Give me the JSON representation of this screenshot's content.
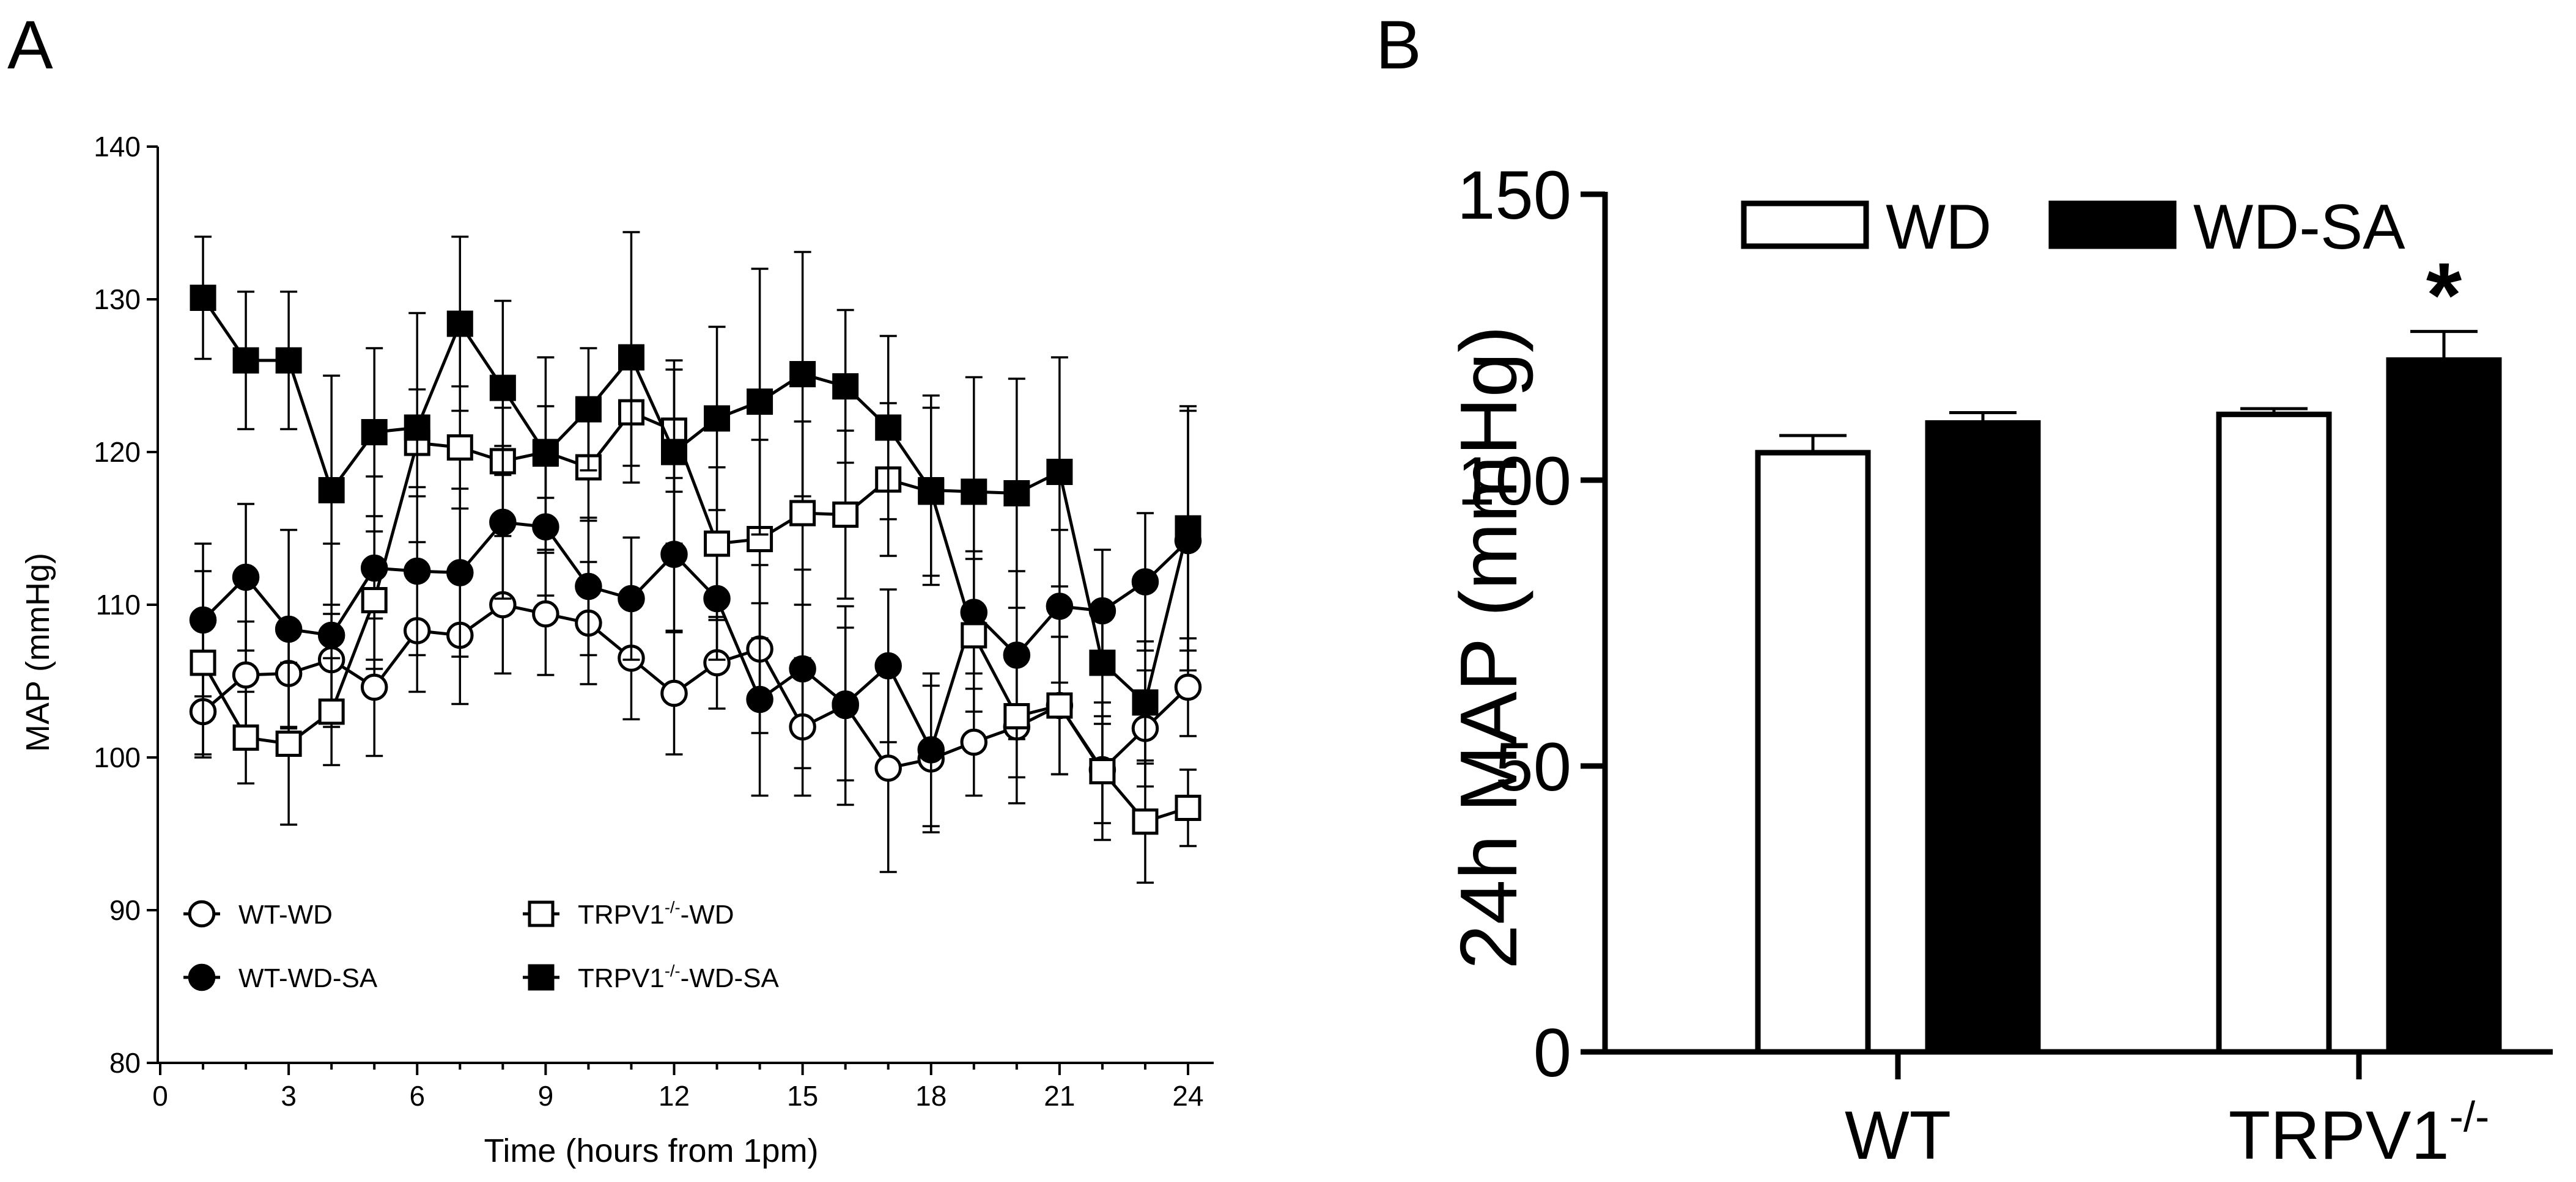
{
  "chart_data": [
    {
      "panel": "A",
      "type": "line",
      "xlabel": "Time (hours from 1pm)",
      "ylabel": "MAP (mmHg)",
      "xlim": [
        0,
        24.5
      ],
      "ylim": [
        80,
        140
      ],
      "xticks": [
        0,
        3,
        6,
        9,
        12,
        15,
        18,
        21,
        24
      ],
      "yticks": [
        80,
        90,
        100,
        110,
        120,
        130,
        140
      ],
      "x": [
        1,
        2,
        3,
        4,
        5,
        6,
        7,
        8,
        9,
        10,
        11,
        12,
        13,
        14,
        15,
        16,
        17,
        18,
        19,
        20,
        21,
        22,
        23,
        24
      ],
      "series": [
        {
          "name": "WT-WD",
          "legend_base": "WT-WD",
          "legend_sup": "",
          "legend_tail": "",
          "marker": "circle",
          "fill": "open",
          "values": [
            103.0,
            105.4,
            105.5,
            106.4,
            104.6,
            108.3,
            108.0,
            110.0,
            109.4,
            108.8,
            106.5,
            104.2,
            106.2,
            107.1,
            102.0,
            103.4,
            99.3,
            99.9,
            101.0,
            102.0,
            103.4,
            99.2,
            101.9,
            104.6
          ],
          "errors": [
            3.0,
            3.5,
            3.5,
            3.0,
            4.5,
            4.0,
            4.5,
            4.5,
            4.0,
            4.0,
            4.0,
            4.0,
            3.0,
            5.5,
            4.5,
            6.5,
            6.8,
            4.8,
            3.5,
            5.0,
            4.5,
            3.5,
            3.8,
            3.2
          ]
        },
        {
          "name": "WT-WD-SA",
          "legend_base": "WT-WD-SA",
          "legend_sup": "",
          "legend_tail": "",
          "marker": "circle",
          "fill": "filled",
          "values": [
            109.0,
            111.8,
            108.4,
            108.0,
            112.4,
            112.2,
            112.1,
            115.4,
            115.1,
            111.2,
            110.4,
            113.3,
            110.4,
            103.8,
            105.8,
            103.5,
            106.0,
            100.5,
            109.5,
            106.7,
            109.9,
            109.6,
            111.5,
            114.2
          ],
          "errors": [
            5.0,
            4.8,
            6.5,
            6.0,
            6.0,
            5.5,
            5.5,
            5.0,
            4.5,
            4.5,
            4.0,
            5.0,
            4.0,
            6.3,
            6.5,
            5.0,
            5.0,
            5.0,
            4.0,
            5.5,
            5.0,
            4.0,
            4.5,
            8.5
          ]
        },
        {
          "name": "TRPV1-/--WD",
          "legend_base": "TRPV1",
          "legend_sup": "-/-",
          "legend_tail": "-WD",
          "marker": "square",
          "fill": "open",
          "values": [
            106.2,
            101.3,
            100.9,
            103.0,
            110.3,
            120.6,
            120.3,
            119.4,
            120.0,
            119.0,
            122.6,
            121.4,
            114.0,
            114.3,
            116.0,
            115.9,
            118.2,
            117.4,
            108.0,
            102.7,
            103.4,
            99.1,
            95.8,
            96.7
          ],
          "errors": [
            6.0,
            3.0,
            5.3,
            3.5,
            4.5,
            3.5,
            4.0,
            3.5,
            3.0,
            3.5,
            3.5,
            4.0,
            5.0,
            6.5,
            6.0,
            5.5,
            5.0,
            5.5,
            5.0,
            4.0,
            4.5,
            4.5,
            4.0,
            2.5
          ]
        },
        {
          "name": "TRPV1-/--WD-SA",
          "legend_base": "TRPV1",
          "legend_sup": "-/-",
          "legend_tail": "-WD-SA",
          "marker": "square",
          "fill": "filled",
          "values": [
            130.1,
            126.0,
            126.0,
            117.5,
            121.3,
            121.6,
            128.4,
            124.2,
            119.9,
            122.8,
            126.2,
            120.0,
            122.2,
            123.3,
            125.1,
            124.3,
            121.6,
            117.5,
            117.4,
            117.3,
            118.7,
            106.2,
            103.6,
            115.0
          ],
          "errors": [
            4.0,
            4.5,
            4.5,
            7.5,
            5.5,
            7.5,
            5.7,
            5.7,
            6.3,
            4.0,
            8.2,
            6.0,
            6.0,
            8.7,
            8.0,
            5.0,
            6.0,
            6.2,
            7.5,
            7.5,
            7.5,
            4.0,
            4.0,
            8.0
          ]
        }
      ]
    },
    {
      "panel": "B",
      "type": "bar",
      "ylabel": "24h MAP (mmHg)",
      "ylim": [
        0,
        150
      ],
      "yticks": [
        0,
        50,
        100,
        150
      ],
      "categories": [
        {
          "base": "WT",
          "sup": ""
        },
        {
          "base": "TRPV1",
          "sup": "-/-"
        }
      ],
      "series": [
        {
          "name": "WD",
          "fill": "open",
          "values": [
            104.8,
            111.5
          ],
          "errors": [
            3.0,
            1.0
          ]
        },
        {
          "name": "WD-SA",
          "fill": "filled",
          "values": [
            110.0,
            121.0
          ],
          "errors": [
            1.8,
            5.0
          ]
        }
      ],
      "annotations": [
        {
          "text": "*",
          "category": 1,
          "series": 1
        }
      ]
    }
  ],
  "panel_labels": [
    "A",
    "B"
  ]
}
